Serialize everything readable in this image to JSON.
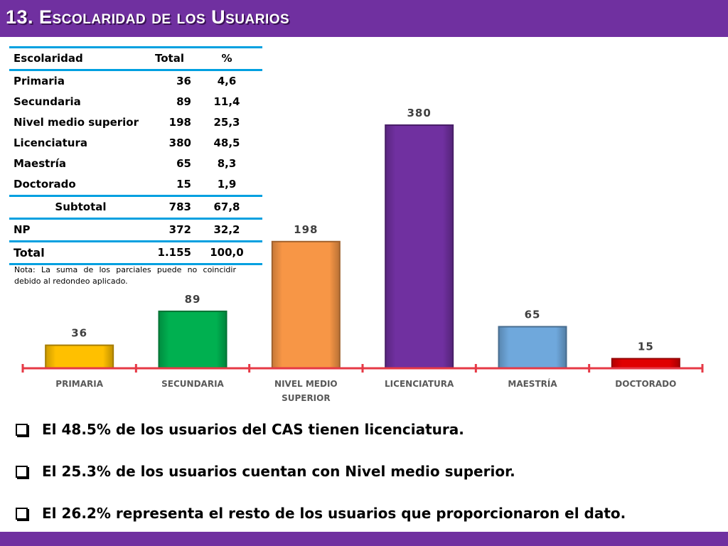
{
  "title": "13. Escolaridad de los Usuarios",
  "chart_data": {
    "type": "bar",
    "categories": [
      "PRIMARIA",
      "SECUNDARIA",
      "NIVEL MEDIO SUPERIOR",
      "LICENCIATURA",
      "MAESTRÍA",
      "DOCTORADO"
    ],
    "category_lines": [
      [
        "PRIMARIA"
      ],
      [
        "SECUNDARIA"
      ],
      [
        "NIVEL MEDIO",
        "SUPERIOR"
      ],
      [
        "LICENCIATURA"
      ],
      [
        "MAESTRÍA"
      ],
      [
        "DOCTORADO"
      ]
    ],
    "values": [
      36,
      89,
      198,
      380,
      65,
      15
    ],
    "colors": [
      "#ffc000",
      "#00b050",
      "#f79646",
      "#7030a0",
      "#6fa8dc",
      "#e00000"
    ],
    "data_labels": true,
    "axis_color": "#e63946",
    "legend": "none",
    "grid": false
  },
  "table": {
    "headers": [
      "Escolaridad",
      "Total",
      "%"
    ],
    "rows": [
      {
        "label": "Primaria",
        "total": "36",
        "pct": "4,6"
      },
      {
        "label": "Secundaria",
        "total": "89",
        "pct": "11,4"
      },
      {
        "label": "Nivel medio superior",
        "total": "198",
        "pct": "25,3"
      },
      {
        "label": "Licenciatura",
        "total": "380",
        "pct": "48,5"
      },
      {
        "label": "Maestría",
        "total": "65",
        "pct": "8,3"
      },
      {
        "label": "Doctorado",
        "total": "15",
        "pct": "1,9"
      }
    ],
    "subtotal": {
      "label": "Subtotal",
      "total": "783",
      "pct": "67,8"
    },
    "np": {
      "label": "NP",
      "total": "372",
      "pct": "32,2"
    },
    "total": {
      "label": "Total",
      "total": "1.155",
      "pct": "100,0"
    },
    "note": "Nota: La suma de los parciales puede no coincidir debido al redondeo aplicado."
  },
  "bullets": [
    "El 48.5% de los usuarios del CAS tienen licenciatura.",
    "El 25.3% de los usuarios cuentan con Nivel medio superior.",
    "El  26.2% representa el resto de los usuarios que proporcionaron el dato."
  ]
}
